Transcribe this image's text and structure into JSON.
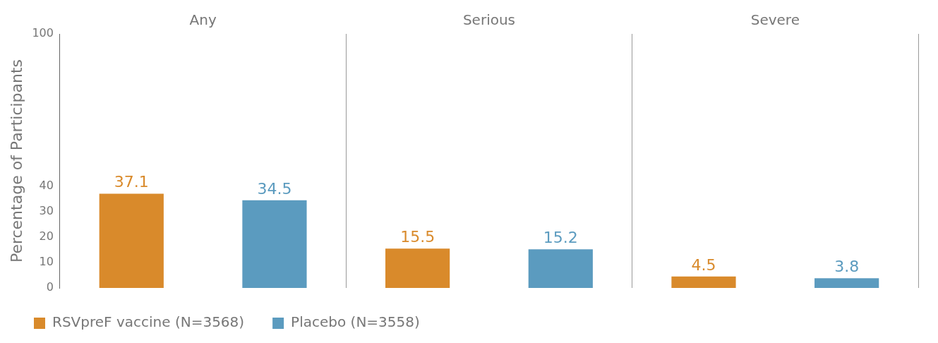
{
  "chart_data": {
    "type": "bar",
    "ylabel": "Percentage of Participants",
    "categories": [
      "Any",
      "Serious",
      "Severe"
    ],
    "series": [
      {
        "name": "RSVpreF vaccine (N=3568)",
        "color": "#d98a2b",
        "values": [
          37.1,
          15.5,
          4.5
        ]
      },
      {
        "name": "Placebo (N=3558)",
        "color": "#5b9bbf",
        "values": [
          34.5,
          15.2,
          3.8
        ]
      }
    ],
    "ylim": [
      0,
      100
    ],
    "yticks": [
      0,
      10,
      20,
      30,
      40,
      100
    ],
    "grid": "x",
    "legend": "bottom left",
    "data_labels": true
  }
}
